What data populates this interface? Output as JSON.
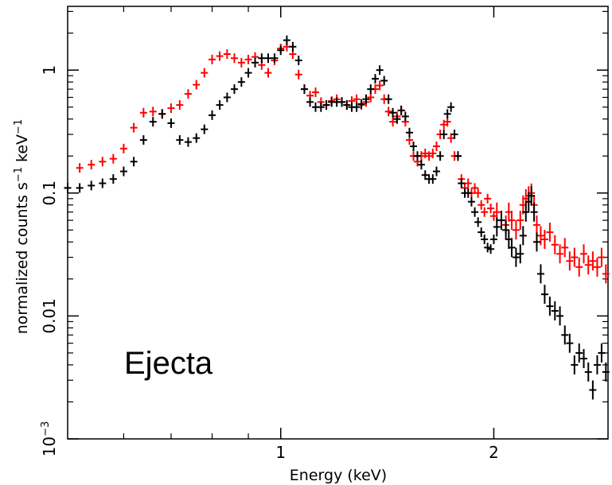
{
  "chart_data": {
    "type": "scatter",
    "title": "",
    "xlabel": "Energy (keV)",
    "ylabel_main": "normalized counts s",
    "ylabel_exp1": "−1",
    "ylabel_mid": " keV",
    "ylabel_exp2": "−1",
    "annotation": "Ejecta",
    "x_scale": "log",
    "y_scale": "log",
    "xlim": [
      0.5,
      2.9
    ],
    "ylim": [
      0.001,
      3.3
    ],
    "x_ticks": [
      {
        "value": 1,
        "label": "1"
      },
      {
        "value": 2,
        "label": "2"
      }
    ],
    "y_ticks": [
      {
        "value": 0.001,
        "label": "10",
        "sup": "−3"
      },
      {
        "value": 0.01,
        "label": "0.01"
      },
      {
        "value": 0.1,
        "label": "0.1"
      },
      {
        "value": 1,
        "label": "1"
      }
    ],
    "x_minor": [
      0.6,
      0.7,
      0.8,
      0.9
    ],
    "y_minor_decades": [
      0.001,
      0.01,
      0.1,
      1
    ],
    "series": [
      {
        "color": "#ff0000",
        "points": [
          [
            0.5,
            0.11
          ],
          [
            0.52,
            0.16
          ],
          [
            0.54,
            0.17
          ],
          [
            0.56,
            0.18
          ],
          [
            0.58,
            0.19
          ],
          [
            0.6,
            0.23
          ],
          [
            0.62,
            0.34
          ],
          [
            0.64,
            0.45
          ],
          [
            0.66,
            0.46
          ],
          [
            0.68,
            0.44
          ],
          [
            0.7,
            0.49
          ],
          [
            0.72,
            0.52
          ],
          [
            0.74,
            0.64
          ],
          [
            0.76,
            0.76
          ],
          [
            0.78,
            0.95
          ],
          [
            0.8,
            1.22
          ],
          [
            0.82,
            1.3
          ],
          [
            0.84,
            1.35
          ],
          [
            0.86,
            1.25
          ],
          [
            0.88,
            1.15
          ],
          [
            0.9,
            1.22
          ],
          [
            0.92,
            1.28
          ],
          [
            0.94,
            1.1
          ],
          [
            0.96,
            0.95
          ],
          [
            0.98,
            1.2
          ],
          [
            1.0,
            1.5
          ],
          [
            1.02,
            1.55
          ],
          [
            1.04,
            1.35
          ],
          [
            1.06,
            0.92
          ],
          [
            1.08,
            0.7
          ],
          [
            1.1,
            0.62
          ],
          [
            1.12,
            0.66
          ],
          [
            1.14,
            0.55
          ],
          [
            1.16,
            0.52
          ],
          [
            1.18,
            0.56
          ],
          [
            1.2,
            0.58
          ],
          [
            1.22,
            0.55
          ],
          [
            1.24,
            0.52
          ],
          [
            1.26,
            0.56
          ],
          [
            1.28,
            0.58
          ],
          [
            1.3,
            0.52
          ],
          [
            1.32,
            0.55
          ],
          [
            1.34,
            0.6
          ],
          [
            1.36,
            0.7
          ],
          [
            1.38,
            0.75
          ],
          [
            1.4,
            0.58
          ],
          [
            1.42,
            0.46
          ],
          [
            1.44,
            0.38
          ],
          [
            1.46,
            0.42
          ],
          [
            1.48,
            0.47
          ],
          [
            1.5,
            0.38
          ],
          [
            1.52,
            0.27
          ],
          [
            1.54,
            0.2
          ],
          [
            1.56,
            0.18
          ],
          [
            1.58,
            0.2
          ],
          [
            1.6,
            0.21
          ],
          [
            1.62,
            0.2
          ],
          [
            1.64,
            0.21
          ],
          [
            1.66,
            0.24
          ],
          [
            1.68,
            0.3
          ],
          [
            1.7,
            0.36
          ],
          [
            1.72,
            0.38
          ],
          [
            1.74,
            0.28
          ],
          [
            1.76,
            0.2
          ],
          [
            1.78,
            0.2
          ],
          [
            1.8,
            0.13
          ],
          [
            1.82,
            0.11
          ],
          [
            1.84,
            0.12
          ],
          [
            1.86,
            0.1
          ],
          [
            1.88,
            0.11
          ],
          [
            1.9,
            0.1
          ],
          [
            1.92,
            0.08
          ],
          [
            1.94,
            0.07
          ],
          [
            1.96,
            0.09
          ],
          [
            1.98,
            0.075
          ],
          [
            2.0,
            0.065
          ],
          [
            2.02,
            0.07
          ],
          [
            2.05,
            0.06
          ],
          [
            2.08,
            0.055
          ],
          [
            2.1,
            0.07
          ],
          [
            2.12,
            0.06
          ],
          [
            2.15,
            0.05
          ],
          [
            2.18,
            0.06
          ],
          [
            2.2,
            0.08
          ],
          [
            2.22,
            0.09
          ],
          [
            2.24,
            0.095
          ],
          [
            2.26,
            0.1
          ],
          [
            2.28,
            0.08
          ],
          [
            2.3,
            0.055
          ],
          [
            2.33,
            0.045
          ],
          [
            2.36,
            0.042
          ],
          [
            2.4,
            0.048
          ],
          [
            2.44,
            0.038
          ],
          [
            2.48,
            0.032
          ],
          [
            2.52,
            0.036
          ],
          [
            2.56,
            0.028
          ],
          [
            2.6,
            0.03
          ],
          [
            2.64,
            0.025
          ],
          [
            2.68,
            0.032
          ],
          [
            2.72,
            0.026
          ],
          [
            2.76,
            0.028
          ],
          [
            2.8,
            0.025
          ],
          [
            2.84,
            0.03
          ],
          [
            2.88,
            0.022
          ]
        ]
      },
      {
        "color": "#000000",
        "points": [
          [
            0.5,
            0.11
          ],
          [
            0.52,
            0.11
          ],
          [
            0.54,
            0.115
          ],
          [
            0.56,
            0.12
          ],
          [
            0.58,
            0.13
          ],
          [
            0.6,
            0.15
          ],
          [
            0.62,
            0.18
          ],
          [
            0.64,
            0.27
          ],
          [
            0.66,
            0.38
          ],
          [
            0.68,
            0.44
          ],
          [
            0.7,
            0.37
          ],
          [
            0.72,
            0.27
          ],
          [
            0.74,
            0.26
          ],
          [
            0.76,
            0.28
          ],
          [
            0.78,
            0.33
          ],
          [
            0.8,
            0.43
          ],
          [
            0.82,
            0.52
          ],
          [
            0.84,
            0.6
          ],
          [
            0.86,
            0.7
          ],
          [
            0.88,
            0.8
          ],
          [
            0.9,
            0.95
          ],
          [
            0.92,
            1.15
          ],
          [
            0.94,
            1.25
          ],
          [
            0.96,
            1.25
          ],
          [
            0.98,
            1.25
          ],
          [
            1.0,
            1.45
          ],
          [
            1.02,
            1.75
          ],
          [
            1.04,
            1.55
          ],
          [
            1.06,
            1.2
          ],
          [
            1.08,
            0.7
          ],
          [
            1.1,
            0.55
          ],
          [
            1.12,
            0.5
          ],
          [
            1.14,
            0.5
          ],
          [
            1.16,
            0.52
          ],
          [
            1.18,
            0.55
          ],
          [
            1.2,
            0.55
          ],
          [
            1.22,
            0.55
          ],
          [
            1.24,
            0.52
          ],
          [
            1.26,
            0.5
          ],
          [
            1.28,
            0.5
          ],
          [
            1.3,
            0.53
          ],
          [
            1.32,
            0.58
          ],
          [
            1.34,
            0.7
          ],
          [
            1.36,
            0.85
          ],
          [
            1.38,
            1.0
          ],
          [
            1.4,
            0.82
          ],
          [
            1.42,
            0.58
          ],
          [
            1.44,
            0.45
          ],
          [
            1.46,
            0.4
          ],
          [
            1.48,
            0.47
          ],
          [
            1.5,
            0.42
          ],
          [
            1.52,
            0.31
          ],
          [
            1.54,
            0.24
          ],
          [
            1.56,
            0.2
          ],
          [
            1.58,
            0.17
          ],
          [
            1.6,
            0.14
          ],
          [
            1.62,
            0.13
          ],
          [
            1.64,
            0.13
          ],
          [
            1.66,
            0.15
          ],
          [
            1.68,
            0.2
          ],
          [
            1.7,
            0.3
          ],
          [
            1.72,
            0.44
          ],
          [
            1.74,
            0.5
          ],
          [
            1.76,
            0.3
          ],
          [
            1.78,
            0.2
          ],
          [
            1.8,
            0.12
          ],
          [
            1.82,
            0.1
          ],
          [
            1.84,
            0.1
          ],
          [
            1.86,
            0.085
          ],
          [
            1.88,
            0.07
          ],
          [
            1.9,
            0.058
          ],
          [
            1.92,
            0.048
          ],
          [
            1.94,
            0.042
          ],
          [
            1.96,
            0.036
          ],
          [
            1.98,
            0.035
          ],
          [
            2.0,
            0.042
          ],
          [
            2.02,
            0.053
          ],
          [
            2.05,
            0.06
          ],
          [
            2.08,
            0.05
          ],
          [
            2.1,
            0.042
          ],
          [
            2.12,
            0.036
          ],
          [
            2.15,
            0.03
          ],
          [
            2.18,
            0.032
          ],
          [
            2.2,
            0.045
          ],
          [
            2.22,
            0.07
          ],
          [
            2.24,
            0.085
          ],
          [
            2.26,
            0.095
          ],
          [
            2.28,
            0.07
          ],
          [
            2.3,
            0.04
          ],
          [
            2.33,
            0.022
          ],
          [
            2.36,
            0.015
          ],
          [
            2.4,
            0.012
          ],
          [
            2.44,
            0.011
          ],
          [
            2.48,
            0.01
          ],
          [
            2.52,
            0.007
          ],
          [
            2.56,
            0.006
          ],
          [
            2.6,
            0.004
          ],
          [
            2.64,
            0.005
          ],
          [
            2.68,
            0.0045
          ],
          [
            2.72,
            0.0035
          ],
          [
            2.76,
            0.0025
          ],
          [
            2.8,
            0.004
          ],
          [
            2.84,
            0.005
          ],
          [
            2.88,
            0.0035
          ]
        ]
      }
    ]
  }
}
